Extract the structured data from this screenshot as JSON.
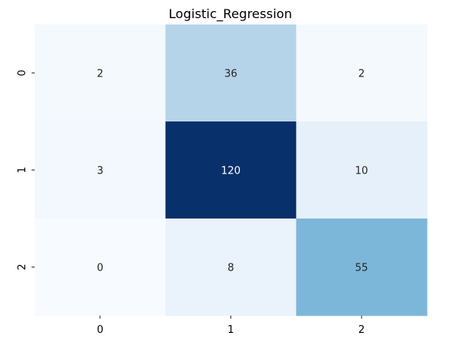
{
  "chart_data": {
    "type": "heatmap",
    "title": "Logistic_Regression",
    "xlabel": "",
    "ylabel": "",
    "x_categories": [
      "0",
      "1",
      "2"
    ],
    "y_categories": [
      "0",
      "1",
      "2"
    ],
    "values": [
      [
        2,
        36,
        2
      ],
      [
        3,
        120,
        10
      ],
      [
        0,
        8,
        55
      ]
    ],
    "colormap": "Blues",
    "color_range": [
      0,
      120
    ],
    "colorbar": false,
    "grid": false,
    "annotate_cells": true
  }
}
